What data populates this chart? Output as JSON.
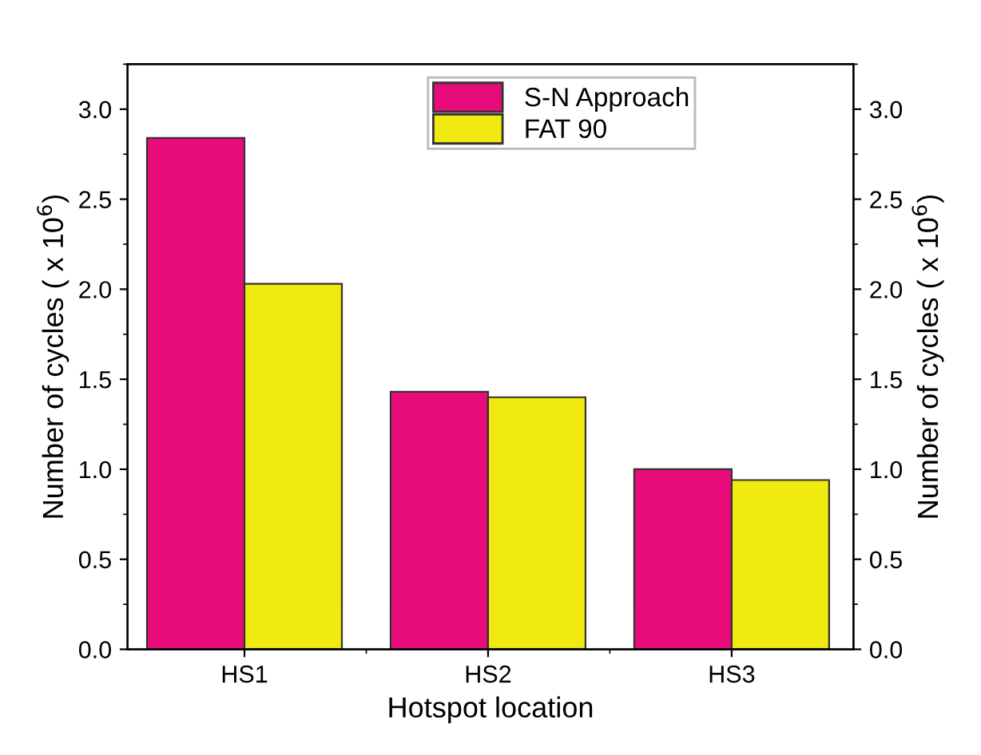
{
  "chart_data": {
    "type": "bar",
    "categories": [
      "HS1",
      "HS2",
      "HS3"
    ],
    "series": [
      {
        "name": "S-N Approach",
        "color": "#e80c7a",
        "values": [
          2.84,
          1.43,
          1.0
        ]
      },
      {
        "name": "FAT 90",
        "color": "#f0ea10",
        "values": [
          2.03,
          1.4,
          0.94
        ]
      }
    ],
    "xlabel": "Hotspot location",
    "ylabel": "Number of cycles ( x 10$^{6}$)",
    "y2label": "Number of cycles ( x 10$^{6}$)",
    "ylim": [
      0,
      3.25
    ],
    "yticks": [
      {
        "value": 0,
        "label": "0.0"
      },
      0.5,
      {
        "value": 1,
        "label": "1.0"
      },
      1.5,
      {
        "value": 2,
        "label": "2.0"
      },
      2.5,
      {
        "value": 3,
        "label": "3.0"
      }
    ],
    "y2lim": [
      0,
      3.25
    ],
    "y2ticks": [
      {
        "value": 0,
        "label": "0.0"
      },
      0.5,
      {
        "value": 1,
        "label": "1.0"
      },
      1.5,
      {
        "value": 2,
        "label": "2.0"
      },
      2.5,
      {
        "value": 3,
        "label": "3.0"
      }
    ],
    "legend": "top right",
    "grid": false
  }
}
